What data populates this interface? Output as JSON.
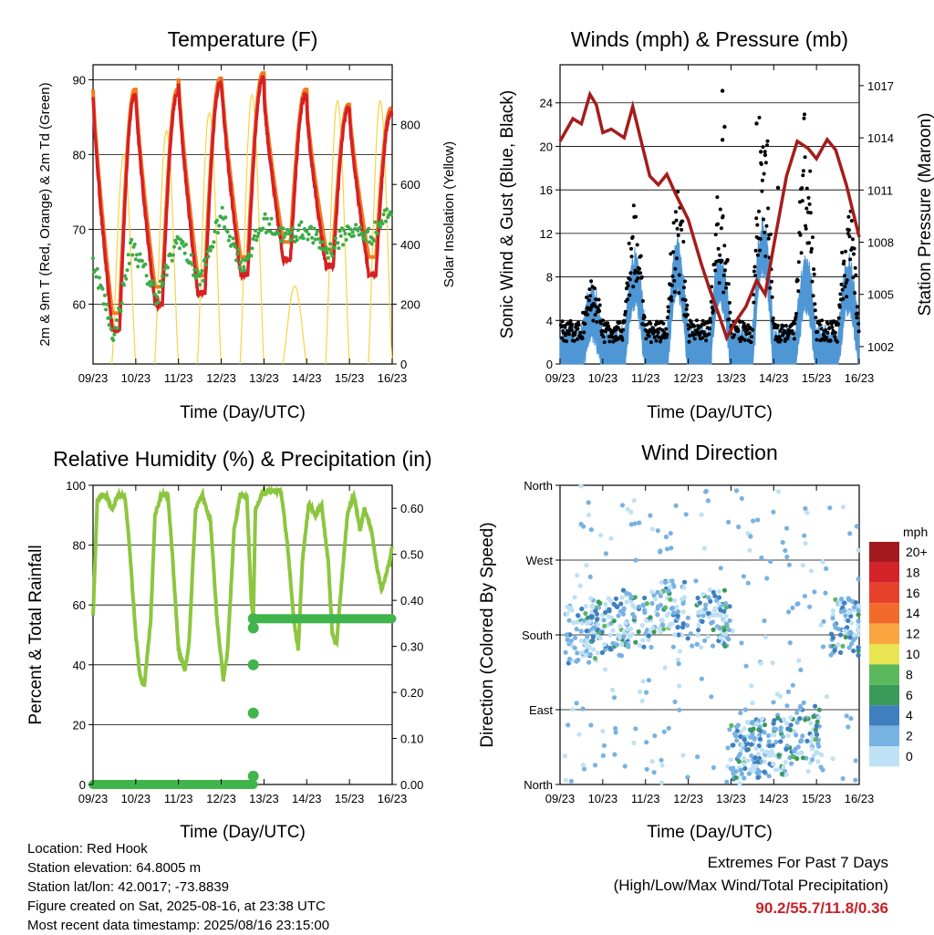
{
  "colors": {
    "temp_2m": "#d62024",
    "temp_9m": "#ef7d22",
    "dewpoint": "#3cab47",
    "solar": "#f5d443",
    "wind": "#4f97d4",
    "gust": "#000000",
    "pressure": "#a51c1c",
    "rh": "#8cc63f",
    "precip": "#41b44c",
    "extremes_text": "#c8202a"
  },
  "x_ticks": [
    "09/23",
    "10/23",
    "11/23",
    "12/23",
    "13/23",
    "14/23",
    "15/23",
    "16/23"
  ],
  "footer": {
    "location": "Location: Red Hook",
    "elevation": "Station elevation: 64.8005 m",
    "latlon": "Station lat/lon: 42.0017; -73.8839",
    "created": "Figure created on Sat, 2025-08-16, at 23:38 UTC",
    "recent": "Most recent data timestamp: 2025/08/16 23:15:00",
    "extremes_title": "Extremes For Past 7 Days",
    "extremes_sub": "(High/Low/Max Wind/Total Precipitation)",
    "extremes_values": "90.2/55.7/11.8/0.36"
  },
  "chart_data": [
    {
      "type": "line",
      "title": "Temperature (F)",
      "xlabel": "Time (Day/UTC)",
      "ylabel": "2m & 9m T (Red, Orange) & 2m Td (Green)",
      "ylabel_right": "Solar Insolation (Yellow)",
      "ylim": [
        52,
        92
      ],
      "yticks": [
        60,
        70,
        80,
        90
      ],
      "ylim_right": [
        0,
        1000
      ],
      "yticks_right": [
        0,
        200,
        400,
        600,
        800
      ],
      "x_days": [
        0,
        7
      ],
      "series": {
        "t2_max": [
          88,
          88,
          89.5,
          90.2,
          88,
          86,
          85.5
        ],
        "t2_min": [
          56.5,
          60,
          61.5,
          64,
          66,
          65,
          64
        ],
        "td": [
          [
            0,
            66
          ],
          [
            0.5,
            55.5
          ],
          [
            0.9,
            68
          ],
          [
            1.5,
            61
          ],
          [
            2,
            69
          ],
          [
            2.5,
            63
          ],
          [
            3,
            72
          ],
          [
            3.5,
            65
          ],
          [
            4,
            71
          ],
          [
            4.5,
            69
          ],
          [
            5,
            70
          ],
          [
            5.5,
            67
          ],
          [
            6,
            70
          ],
          [
            6.5,
            69
          ],
          [
            7,
            73
          ]
        ],
        "solar_peak": [
          700,
          780,
          840,
          900,
          260,
          880,
          880,
          930
        ]
      }
    },
    {
      "type": "line",
      "title": "Winds (mph) & Pressure (mb)",
      "xlabel": "Time (Day/UTC)",
      "ylabel": "Sonic Wind & Gust (Blue, Black)",
      "ylabel_right": "Station Pressure (Maroon)",
      "ylim": [
        0,
        27.5
      ],
      "yticks": [
        0,
        4,
        8,
        12,
        16,
        20,
        24
      ],
      "ylim_right": [
        1001,
        1018.2
      ],
      "yticks_right": [
        1002,
        1005,
        1008,
        1011,
        1014,
        1017
      ],
      "x_days": [
        0,
        7
      ],
      "pressure": [
        [
          0,
          1013.8
        ],
        [
          0.3,
          1015.1
        ],
        [
          0.5,
          1014.8
        ],
        [
          0.7,
          1016.5
        ],
        [
          0.85,
          1015.9
        ],
        [
          1,
          1014.3
        ],
        [
          1.2,
          1014.5
        ],
        [
          1.5,
          1014.0
        ],
        [
          1.7,
          1015.8
        ],
        [
          1.9,
          1013.8
        ],
        [
          2.1,
          1011.8
        ],
        [
          2.3,
          1011.3
        ],
        [
          2.5,
          1011.9
        ],
        [
          2.7,
          1010.8
        ],
        [
          3,
          1009.3
        ],
        [
          3.3,
          1006.8
        ],
        [
          3.5,
          1005.3
        ],
        [
          3.75,
          1003.6
        ],
        [
          3.9,
          1002.5
        ],
        [
          4.1,
          1003.4
        ],
        [
          4.35,
          1004.3
        ],
        [
          4.6,
          1005.8
        ],
        [
          4.8,
          1005.0
        ],
        [
          5,
          1007.8
        ],
        [
          5.3,
          1011.8
        ],
        [
          5.55,
          1013.8
        ],
        [
          5.8,
          1013.4
        ],
        [
          6,
          1012.8
        ],
        [
          6.25,
          1013.9
        ],
        [
          6.45,
          1013.3
        ],
        [
          6.7,
          1011.3
        ],
        [
          6.9,
          1009.3
        ],
        [
          7,
          1008.3
        ]
      ],
      "wind_daily_peak": [
        4,
        7,
        8,
        7,
        10,
        6.5,
        6.5,
        8
      ],
      "gust_daily_peak": [
        5,
        12.7,
        14.5,
        14,
        25.1,
        22.1,
        13.5,
        19.2
      ]
    },
    {
      "type": "line",
      "title": "Relative Humidity (%) & Precipitation (in)",
      "xlabel": "Time (Day/UTC)",
      "ylabel": "Percent & Total Rainfall",
      "ylim": [
        0,
        100
      ],
      "yticks": [
        0,
        20,
        40,
        60,
        80,
        100
      ],
      "ylim_right": [
        0,
        0.65
      ],
      "yticks_right": [
        "0.00",
        "0.10",
        "0.20",
        "0.30",
        "0.40",
        "0.50",
        "0.60"
      ],
      "x_days": [
        0,
        7
      ],
      "rh": [
        [
          0,
          56
        ],
        [
          0.1,
          95
        ],
        [
          0.3,
          97
        ],
        [
          0.45,
          92
        ],
        [
          0.6,
          97
        ],
        [
          0.75,
          96
        ],
        [
          0.85,
          80
        ],
        [
          1.0,
          50
        ],
        [
          1.1,
          36
        ],
        [
          1.2,
          33
        ],
        [
          1.35,
          55
        ],
        [
          1.45,
          90
        ],
        [
          1.6,
          97
        ],
        [
          1.75,
          97
        ],
        [
          1.85,
          78
        ],
        [
          2.0,
          45
        ],
        [
          2.15,
          38
        ],
        [
          2.25,
          48
        ],
        [
          2.4,
          92
        ],
        [
          2.55,
          97
        ],
        [
          2.75,
          88
        ],
        [
          2.9,
          55
        ],
        [
          3.05,
          35
        ],
        [
          3.15,
          45
        ],
        [
          3.3,
          85
        ],
        [
          3.45,
          97
        ],
        [
          3.6,
          96
        ],
        [
          3.7,
          62
        ],
        [
          3.75,
          56
        ],
        [
          3.8,
          92
        ],
        [
          3.95,
          97
        ],
        [
          4.15,
          98
        ],
        [
          4.4,
          98
        ],
        [
          4.55,
          80
        ],
        [
          4.7,
          55
        ],
        [
          4.8,
          45
        ],
        [
          4.9,
          75
        ],
        [
          5.05,
          94
        ],
        [
          5.2,
          90
        ],
        [
          5.35,
          93
        ],
        [
          5.5,
          75
        ],
        [
          5.6,
          50
        ],
        [
          5.7,
          47
        ],
        [
          5.8,
          65
        ],
        [
          5.95,
          90
        ],
        [
          6.1,
          97
        ],
        [
          6.25,
          85
        ],
        [
          6.35,
          92
        ],
        [
          6.5,
          86
        ],
        [
          6.65,
          72
        ],
        [
          6.75,
          65
        ],
        [
          6.85,
          70
        ],
        [
          6.95,
          75
        ],
        [
          7,
          80
        ]
      ],
      "precip": [
        [
          0,
          0
        ],
        [
          3.75,
          0
        ],
        [
          3.75,
          0.018
        ],
        [
          3.75,
          0.155
        ],
        [
          3.75,
          0.26
        ],
        [
          3.75,
          0.34
        ],
        [
          3.75,
          0.36
        ],
        [
          7,
          0.36
        ]
      ]
    },
    {
      "type": "scatter",
      "title": "Wind Direction",
      "xlabel": "Time (Day/UTC)",
      "ylabel": "Direction (Colored By Speed)",
      "yticks": [
        "North",
        "East",
        "South",
        "West",
        "North"
      ],
      "ylim": [
        0,
        360
      ],
      "x_days": [
        0,
        7
      ],
      "legend_title": "mph",
      "legend_labels": [
        "20+",
        "18",
        "16",
        "14",
        "12",
        "10",
        "8",
        "6",
        "4",
        "2",
        "0"
      ],
      "legend_colors": [
        "#a3191e",
        "#d42229",
        "#e8412b",
        "#f26a2a",
        "#f9a640",
        "#e9e452",
        "#5cb85c",
        "#3a9a5a",
        "#3f7fbf",
        "#78b2e2",
        "#bfe1f5"
      ],
      "direction_clusters": [
        [
          0.5,
          180
        ],
        [
          1.0,
          190
        ],
        [
          1.8,
          200
        ],
        [
          2.6,
          210
        ],
        [
          3.6,
          200
        ],
        [
          4.3,
          40
        ],
        [
          4.9,
          45
        ],
        [
          5.7,
          60
        ],
        [
          6.7,
          190
        ]
      ]
    }
  ]
}
